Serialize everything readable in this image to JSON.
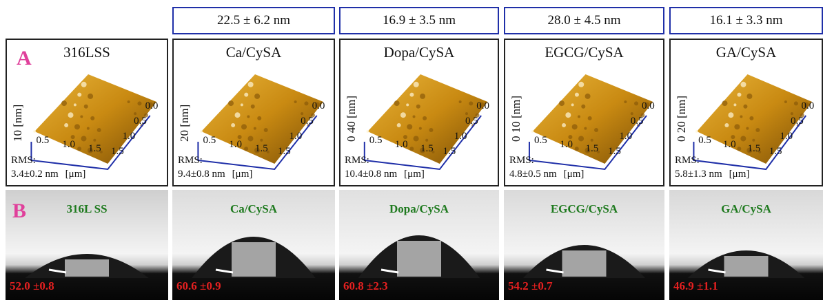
{
  "roughness_headers": [
    "22.5 ± 6.2 nm",
    "16.9 ± 3.5 nm",
    "28.0 ± 4.5 nm",
    "16.1 ± 3.3 nm"
  ],
  "row_a": {
    "letter": "A",
    "unit_label": "[μm]",
    "rms_label": "RMS:",
    "panels": [
      {
        "title": "316LSS",
        "z_label": "10 [nm]",
        "rms": "3.4±0.2 nm"
      },
      {
        "title": "Ca/CySA",
        "z_label": "20 [nm]",
        "rms": "9.4±0.8 nm"
      },
      {
        "title": "Dopa/CySA",
        "z_label": "0  40 [nm]",
        "rms": "10.4±0.8 nm"
      },
      {
        "title": "EGCG/CySA",
        "z_label": "0  10 [nm]",
        "rms": "4.8±0.5 nm"
      },
      {
        "title": "GA/CySA",
        "z_label": "0  20 [nm]",
        "rms": "5.8±1.3 nm"
      }
    ],
    "x_ticks": [
      "0.5",
      "1.0",
      "1.5"
    ],
    "y_ticks": [
      "0.0",
      "0.5",
      "1.0",
      "1.5"
    ]
  },
  "row_b": {
    "letter": "B",
    "panels": [
      {
        "title": "316L SS",
        "angle": "52.0 ±0.8"
      },
      {
        "title": "Ca/CySA",
        "angle": "60.6 ±0.9"
      },
      {
        "title": "Dopa/CySA",
        "angle": "60.8 ±2.3"
      },
      {
        "title": "EGCG/CySA",
        "angle": "54.2 ±0.7"
      },
      {
        "title": "GA/CySA",
        "angle": "46.9 ±1.1"
      }
    ]
  },
  "colors": {
    "header_border": "#1f2fa8",
    "letter": "#e0409b",
    "title_b": "#1f7a1f",
    "angle": "#e52020",
    "surface": "#c98a12"
  }
}
